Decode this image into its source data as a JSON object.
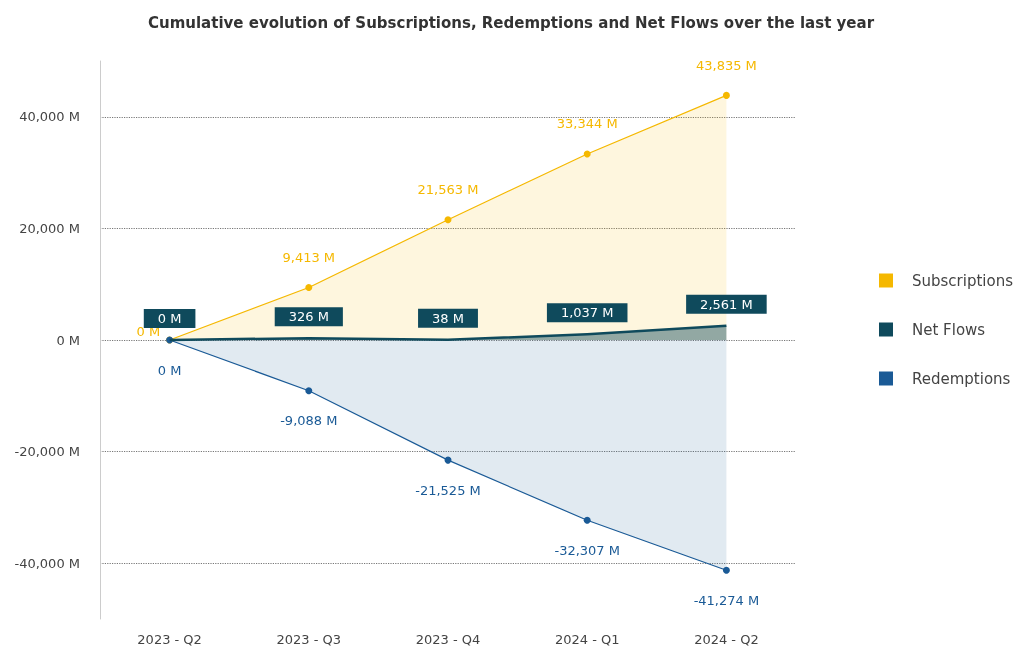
{
  "chart_data": {
    "type": "area",
    "title": "Cumulative evolution of Subscriptions, Redemptions and Net Flows over the last year",
    "categories": [
      "2023 - Q2",
      "2023 - Q3",
      "2023 - Q4",
      "2024 - Q1",
      "2024 - Q2"
    ],
    "series": [
      {
        "name": "Subscriptions",
        "color": "#f5b800",
        "marker": "circle",
        "values": [
          0,
          9413,
          21563,
          33344,
          43835
        ],
        "value_labels": [
          "0 M",
          "9,413 M",
          "21,563 M",
          "33,344 M",
          "43,835 M"
        ]
      },
      {
        "name": "Net Flows",
        "color": "#0f4a5c",
        "marker": "none",
        "values": [
          0,
          326,
          38,
          1037,
          2561
        ],
        "value_labels": [
          "0 M",
          "326 M",
          "38 M",
          "1,037 M",
          "2,561 M"
        ]
      },
      {
        "name": "Redemptions",
        "color": "#1a5a96",
        "marker": "circle",
        "values": [
          0,
          -9088,
          -21525,
          -32307,
          -41274
        ],
        "value_labels": [
          "0 M",
          "-9,088 M",
          "-21,525 M",
          "-32,307 M",
          "-41,274 M"
        ]
      }
    ],
    "ylim": [
      -50000,
      50000
    ],
    "yticks": [
      {
        "value": -40000,
        "label": "-40,000 M"
      },
      {
        "value": -20000,
        "label": "-20,000 M"
      },
      {
        "value": 0,
        "label": "0 M"
      },
      {
        "value": 20000,
        "label": "20,000 M"
      },
      {
        "value": 40000,
        "label": "40,000 M"
      }
    ],
    "grid": "y",
    "legend": "right"
  }
}
